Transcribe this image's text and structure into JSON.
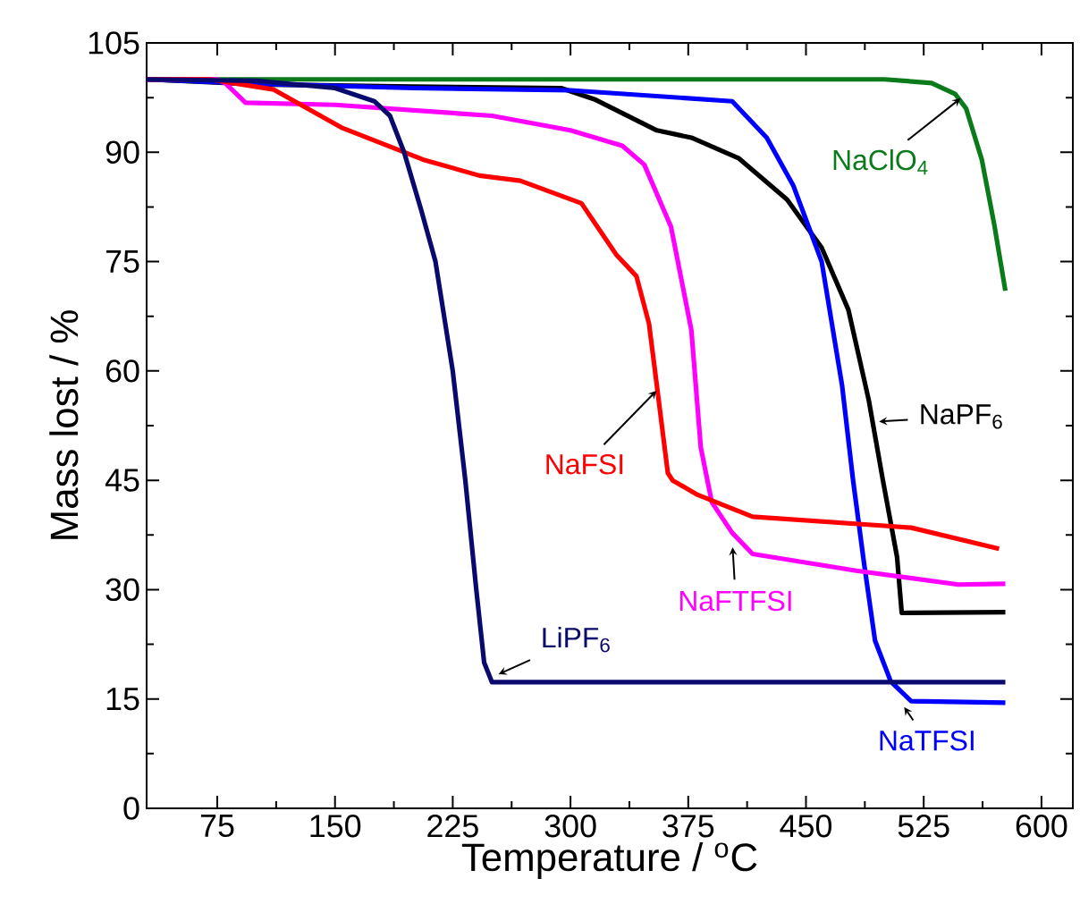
{
  "chart_data": {
    "type": "line",
    "xlabel": "Temperature / $^{o}$C",
    "ylabel": "Mass lost  / %",
    "xlim": [
      30,
      620
    ],
    "ylim": [
      0,
      105
    ],
    "xticks": [
      75,
      150,
      225,
      300,
      375,
      450,
      525,
      600
    ],
    "yticks": [
      0,
      15,
      30,
      45,
      60,
      75,
      90,
      105
    ],
    "grid": false,
    "marker": "none",
    "line_style": "solid",
    "series": [
      {
        "color": "#0a7a1a",
        "x": [
          30,
          300,
          500,
          530,
          545,
          552,
          562,
          570,
          577
        ],
        "values": [
          100,
          100,
          100,
          99.5,
          98,
          96,
          89,
          80,
          71
        ]
      },
      {
        "color": "#000000",
        "x": [
          30,
          100,
          200,
          294,
          316,
          355,
          377,
          407,
          438,
          460,
          477,
          490,
          499,
          508,
          511,
          577
        ],
        "values": [
          100,
          99.3,
          99,
          98.8,
          97.2,
          93,
          92,
          89.2,
          83.5,
          76.9,
          68.4,
          56,
          45,
          34.5,
          26.8,
          26.9
        ]
      },
      {
        "color": "#0000ff",
        "x": [
          30,
          100,
          200,
          300,
          403,
          425,
          442,
          460,
          473,
          480,
          487,
          494,
          504,
          517,
          577
        ],
        "values": [
          100,
          99.4,
          98.8,
          98.5,
          97,
          92,
          85.4,
          75,
          58,
          45,
          33.6,
          23,
          17.4,
          14.7,
          14.5
        ]
      },
      {
        "color": "#ff00ff",
        "x": [
          30,
          75,
          80,
          93,
          150,
          250,
          300,
          333,
          347,
          364,
          377,
          383,
          390,
          403,
          416,
          482,
          547,
          577
        ],
        "values": [
          100,
          100,
          99.5,
          96.8,
          96.5,
          95,
          93,
          90.9,
          88.3,
          79.8,
          65.6,
          49.5,
          42,
          37.8,
          34.9,
          32.6,
          30.7,
          30.8
        ]
      },
      {
        "color": "#ff0000",
        "x": [
          30,
          70,
          111,
          154,
          206,
          242,
          268,
          307,
          329,
          342,
          350,
          355,
          362,
          365,
          381,
          416,
          504,
          517,
          573
        ],
        "values": [
          100,
          100,
          98.6,
          93.4,
          89,
          86.8,
          86.1,
          83,
          76,
          73,
          66.5,
          58,
          46,
          45,
          43,
          40,
          38.7,
          38.5,
          35.6
        ]
      },
      {
        "color": "#0a0a6e",
        "x": [
          30,
          100,
          150,
          175,
          185,
          194,
          205,
          214,
          225,
          233,
          240,
          245,
          250,
          577
        ],
        "values": [
          100,
          99.8,
          98.8,
          97,
          95,
          90,
          82,
          75,
          60,
          45,
          30,
          20,
          17.3,
          17.3
        ]
      }
    ],
    "annotations": [
      {
        "text": "NaClO$_{4}$",
        "x": 552,
        "y": 98
      },
      {
        "text": "NaPF$_{6}$",
        "x": 492,
        "y": 53
      },
      {
        "text": "NaTFSI",
        "x": 510,
        "y": 14.7
      },
      {
        "text": "NaFTFSI",
        "x": 403,
        "y": 36.8
      },
      {
        "text": "NaFSI",
        "x": 358,
        "y": 58
      },
      {
        "text": "LiPF$_{6}$",
        "x": 250,
        "y": 18
      }
    ]
  }
}
